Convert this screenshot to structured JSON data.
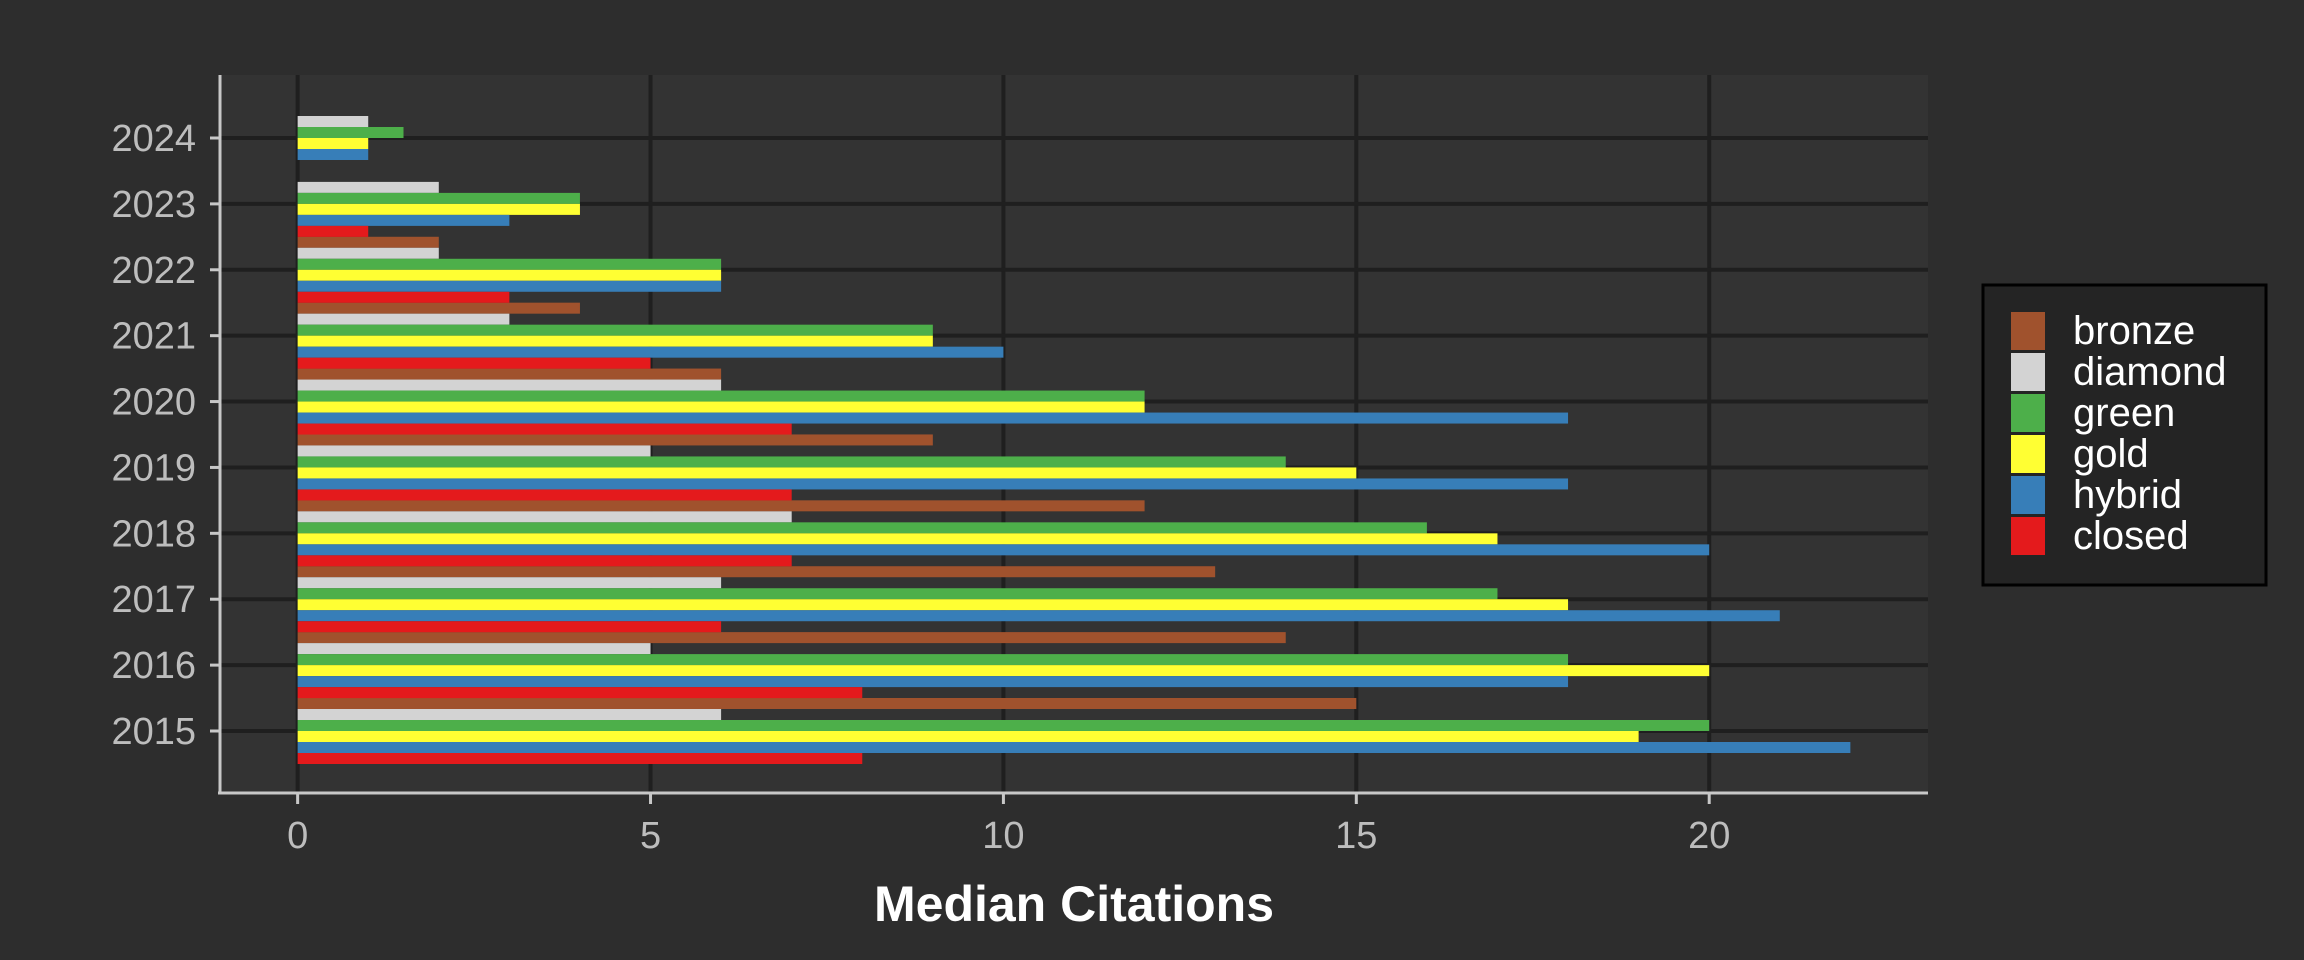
{
  "chart_data": {
    "type": "bar",
    "orientation": "horizontal",
    "xlabel": "Median Citations",
    "ylabel": "",
    "xlim": [
      -1.1,
      23.1
    ],
    "xticks": [
      0,
      5,
      10,
      15,
      20
    ],
    "grid": true,
    "legend_position": "right",
    "categories": [
      "2015",
      "2016",
      "2017",
      "2018",
      "2019",
      "2020",
      "2021",
      "2022",
      "2023",
      "2024"
    ],
    "series": [
      {
        "name": "bronze",
        "color": "#a0522d",
        "values": [
          15,
          14,
          13,
          12,
          9,
          6,
          4,
          2,
          0,
          0
        ]
      },
      {
        "name": "diamond",
        "color": "#d3d3d3",
        "values": [
          6,
          5,
          6,
          7,
          5,
          6,
          3,
          2,
          2,
          1
        ]
      },
      {
        "name": "green",
        "color": "#4daf4a",
        "values": [
          20,
          18,
          17,
          16,
          14,
          12,
          9,
          6,
          4,
          1.5
        ]
      },
      {
        "name": "gold",
        "color": "#ffff33",
        "values": [
          19,
          20,
          18,
          17,
          15,
          12,
          9,
          6,
          4,
          1
        ]
      },
      {
        "name": "hybrid",
        "color": "#377eb8",
        "values": [
          22,
          18,
          21,
          20,
          18,
          18,
          10,
          6,
          3,
          1
        ]
      },
      {
        "name": "closed",
        "color": "#e41a1c",
        "values": [
          8,
          8,
          6,
          7,
          7,
          7,
          5,
          3,
          1,
          0
        ]
      }
    ]
  }
}
